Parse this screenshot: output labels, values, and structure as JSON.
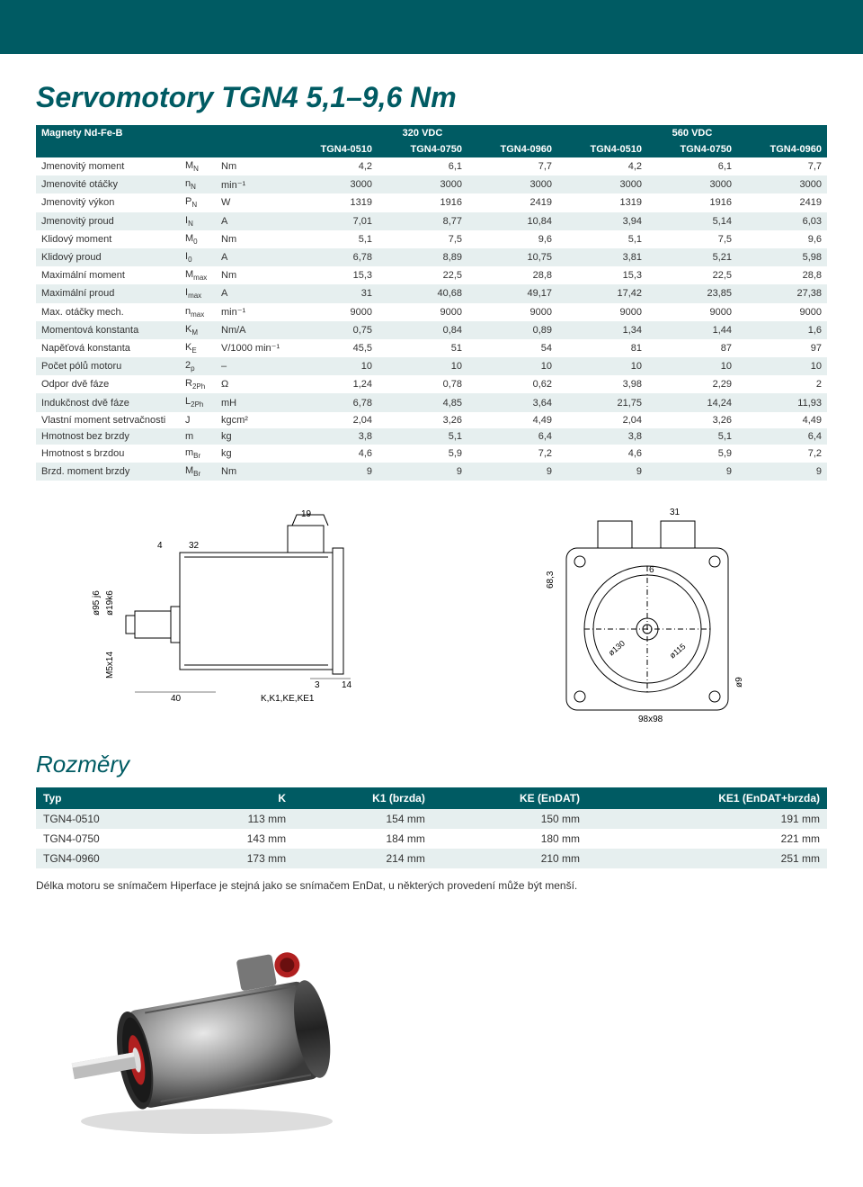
{
  "page_title": "Servomotory TGN4  5,1–9,6 Nm",
  "colors": {
    "brand": "#005b63",
    "row_alt": "#e6efef",
    "bg": "#ffffff"
  },
  "spec_table": {
    "header_group_label": "Magnety Nd-Fe-B",
    "voltage_groups": [
      "320 VDC",
      "560 VDC"
    ],
    "model_cols": [
      "TGN4-0510",
      "TGN4-0750",
      "TGN4-0960",
      "TGN4-0510",
      "TGN4-0750",
      "TGN4-0960"
    ],
    "rows": [
      {
        "label": "Jmenovitý moment",
        "sym": "M",
        "sub": "N",
        "unit": "Nm",
        "vals": [
          "4,2",
          "6,1",
          "7,7",
          "4,2",
          "6,1",
          "7,7"
        ]
      },
      {
        "label": "Jmenovité otáčky",
        "sym": "n",
        "sub": "N",
        "unit": "min⁻¹",
        "vals": [
          "3000",
          "3000",
          "3000",
          "3000",
          "3000",
          "3000"
        ]
      },
      {
        "label": "Jmenovitý výkon",
        "sym": "P",
        "sub": "N",
        "unit": "W",
        "vals": [
          "1319",
          "1916",
          "2419",
          "1319",
          "1916",
          "2419"
        ]
      },
      {
        "label": "Jmenovitý proud",
        "sym": "I",
        "sub": "N",
        "unit": "A",
        "vals": [
          "7,01",
          "8,77",
          "10,84",
          "3,94",
          "5,14",
          "6,03"
        ]
      },
      {
        "label": "Klidový moment",
        "sym": "M",
        "sub": "0",
        "unit": "Nm",
        "vals": [
          "5,1",
          "7,5",
          "9,6",
          "5,1",
          "7,5",
          "9,6"
        ]
      },
      {
        "label": "Klidový proud",
        "sym": "I",
        "sub": "0",
        "unit": "A",
        "vals": [
          "6,78",
          "8,89",
          "10,75",
          "3,81",
          "5,21",
          "5,98"
        ]
      },
      {
        "label": "Maximální moment",
        "sym": "M",
        "sub": "max",
        "unit": "Nm",
        "vals": [
          "15,3",
          "22,5",
          "28,8",
          "15,3",
          "22,5",
          "28,8"
        ]
      },
      {
        "label": "Maximální proud",
        "sym": "I",
        "sub": "max",
        "unit": "A",
        "vals": [
          "31",
          "40,68",
          "49,17",
          "17,42",
          "23,85",
          "27,38"
        ]
      },
      {
        "label": "Max. otáčky mech.",
        "sym": "n",
        "sub": "max",
        "unit": "min⁻¹",
        "vals": [
          "9000",
          "9000",
          "9000",
          "9000",
          "9000",
          "9000"
        ]
      },
      {
        "label": "Momentová konstanta",
        "sym": "K",
        "sub": "M",
        "unit": "Nm/A",
        "vals": [
          "0,75",
          "0,84",
          "0,89",
          "1,34",
          "1,44",
          "1,6"
        ]
      },
      {
        "label": "Napěťová konstanta",
        "sym": "K",
        "sub": "E",
        "unit": "V/1000 min⁻¹",
        "vals": [
          "45,5",
          "51",
          "54",
          "81",
          "87",
          "97"
        ]
      },
      {
        "label": "Počet pólů motoru",
        "sym": "2",
        "sub": "p",
        "unit": "–",
        "vals": [
          "10",
          "10",
          "10",
          "10",
          "10",
          "10"
        ]
      },
      {
        "label": "Odpor dvě fáze",
        "sym": "R",
        "sub": "2Ph",
        "unit": "Ω",
        "vals": [
          "1,24",
          "0,78",
          "0,62",
          "3,98",
          "2,29",
          "2"
        ]
      },
      {
        "label": "Indukčnost dvě fáze",
        "sym": "L",
        "sub": "2Ph",
        "unit": "mH",
        "vals": [
          "6,78",
          "4,85",
          "3,64",
          "21,75",
          "14,24",
          "11,93"
        ]
      },
      {
        "label": "Vlastní moment setrvačnosti",
        "sym": "J",
        "sub": "",
        "unit": "kgcm²",
        "vals": [
          "2,04",
          "3,26",
          "4,49",
          "2,04",
          "3,26",
          "4,49"
        ]
      },
      {
        "label": "Hmotnost bez brzdy",
        "sym": "m",
        "sub": "",
        "unit": "kg",
        "vals": [
          "3,8",
          "5,1",
          "6,4",
          "3,8",
          "5,1",
          "6,4"
        ]
      },
      {
        "label": "Hmotnost s brzdou",
        "sym": "m",
        "sub": "Br",
        "unit": "kg",
        "vals": [
          "4,6",
          "5,9",
          "7,2",
          "4,6",
          "5,9",
          "7,2"
        ]
      },
      {
        "label": "Brzd. moment brzdy",
        "sym": "M",
        "sub": "Br",
        "unit": "Nm",
        "vals": [
          "9",
          "9",
          "9",
          "9",
          "9",
          "9"
        ]
      }
    ]
  },
  "drawing_labels": {
    "side": {
      "dims": [
        "4",
        "32",
        "40",
        "3",
        "14",
        "19"
      ],
      "callouts": [
        "ø95 j6",
        "ø19k6",
        "M5x14",
        "K,K1,KE,KE1"
      ]
    },
    "front": {
      "dims": [
        "31",
        "6",
        "68,3",
        "98x98"
      ],
      "callouts": [
        "ø130",
        "ø115",
        "ø9"
      ]
    }
  },
  "dim_section_title": "Rozměry",
  "dim_table": {
    "cols": [
      "Typ",
      "K",
      "K1 (brzda)",
      "KE (EnDAT)",
      "KE1 (EnDAT+brzda)"
    ],
    "rows": [
      [
        "TGN4-0510",
        "113 mm",
        "154 mm",
        "150 mm",
        "191 mm"
      ],
      [
        "TGN4-0750",
        "143 mm",
        "184 mm",
        "180 mm",
        "221 mm"
      ],
      [
        "TGN4-0960",
        "173 mm",
        "214 mm",
        "210 mm",
        "251 mm"
      ]
    ]
  },
  "note_text": "Délka motoru se snímačem Hiperface je stejná jako se snímačem EnDat, u některých provedení může být menší."
}
